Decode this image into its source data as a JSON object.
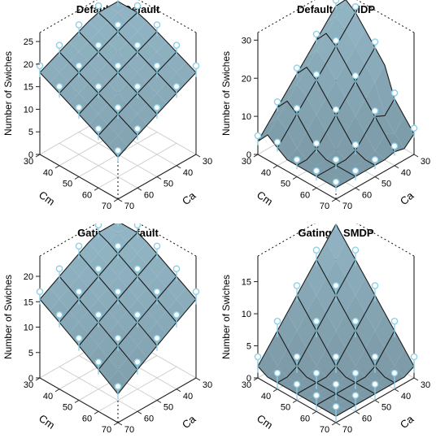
{
  "figure": {
    "panels": [
      {
        "title": "Default – Default"
      },
      {
        "title": "Default – SMDP"
      },
      {
        "title": "Gating – Default"
      },
      {
        "title": "Gating – SMDP"
      }
    ]
  },
  "colors": {
    "surface": "#94b8c8",
    "surface_edge": "#1a1a1a",
    "point": "#8fd0e6",
    "floor_grid": "#c8c8c8",
    "floor_line": "#e8b8b8",
    "axis": "#222222",
    "dotted_box": "#111111"
  },
  "chart_data": [
    {
      "type": "surface3d",
      "title": "Default – Default",
      "xlabel": "Cm",
      "ylabel": "Ca",
      "zlabel": "Number of Swiches",
      "x_ticks": [
        30,
        40,
        50,
        60,
        70
      ],
      "y_ticks": [
        30,
        40,
        50,
        60,
        70
      ],
      "z_ticks": [
        0,
        5,
        10,
        15,
        20,
        25
      ],
      "zlim": [
        0,
        27
      ],
      "grid_x": [
        30,
        35,
        40,
        45,
        50,
        55,
        60,
        65,
        70
      ],
      "grid_y": [
        30,
        35,
        40,
        45,
        50,
        55,
        60,
        65,
        70
      ],
      "z_model": {
        "base": 6,
        "kx": 0.35,
        "ky": 0.25,
        "peak": 24,
        "shape": "plateau"
      }
    },
    {
      "type": "surface3d",
      "title": "Default – SMDP",
      "xlabel": "Cm",
      "ylabel": "Ca",
      "zlabel": "Number of Swiches",
      "x_ticks": [
        30,
        40,
        50,
        60,
        70
      ],
      "y_ticks": [
        30,
        40,
        50,
        60,
        70
      ],
      "z_ticks": [
        0,
        10,
        20,
        30
      ],
      "zlim": [
        0,
        32
      ],
      "grid_x": [
        30,
        35,
        40,
        45,
        50,
        55,
        60,
        65,
        70
      ],
      "grid_y": [
        30,
        35,
        40,
        45,
        50,
        55,
        60,
        65,
        70
      ],
      "z_model": {
        "base": 3,
        "kx": 0.5,
        "ky": 0.45,
        "peak": 31,
        "shape": "ridge"
      }
    },
    {
      "type": "surface3d",
      "title": "Gating – Default",
      "xlabel": "Cm",
      "ylabel": "Ca",
      "zlabel": "Number of Swiches",
      "x_ticks": [
        30,
        40,
        50,
        60,
        70
      ],
      "y_ticks": [
        30,
        40,
        50,
        60,
        70
      ],
      "z_ticks": [
        0,
        5,
        10,
        15,
        20
      ],
      "zlim": [
        0,
        24
      ],
      "grid_x": [
        30,
        35,
        40,
        45,
        50,
        55,
        60,
        65,
        70
      ],
      "grid_y": [
        30,
        35,
        40,
        45,
        50,
        55,
        60,
        65,
        70
      ],
      "z_model": {
        "base": 2,
        "kx": 0.3,
        "ky": 0.3,
        "peak": 22,
        "shape": "plateau"
      }
    },
    {
      "type": "surface3d",
      "title": "Gating – SMDP",
      "xlabel": "Cm",
      "ylabel": "Ca",
      "zlabel": "Number of Swiches",
      "x_ticks": [
        30,
        40,
        50,
        60,
        70
      ],
      "y_ticks": [
        30,
        40,
        50,
        60,
        70
      ],
      "z_ticks": [
        0,
        5,
        10,
        15
      ],
      "zlim": [
        0,
        19
      ],
      "grid_x": [
        30,
        35,
        40,
        45,
        50,
        55,
        60,
        65,
        70
      ],
      "grid_y": [
        30,
        35,
        40,
        45,
        50,
        55,
        60,
        65,
        70
      ],
      "z_model": {
        "base": 1,
        "kx": 0.25,
        "ky": 0.25,
        "peak": 17,
        "shape": "peak"
      }
    }
  ]
}
